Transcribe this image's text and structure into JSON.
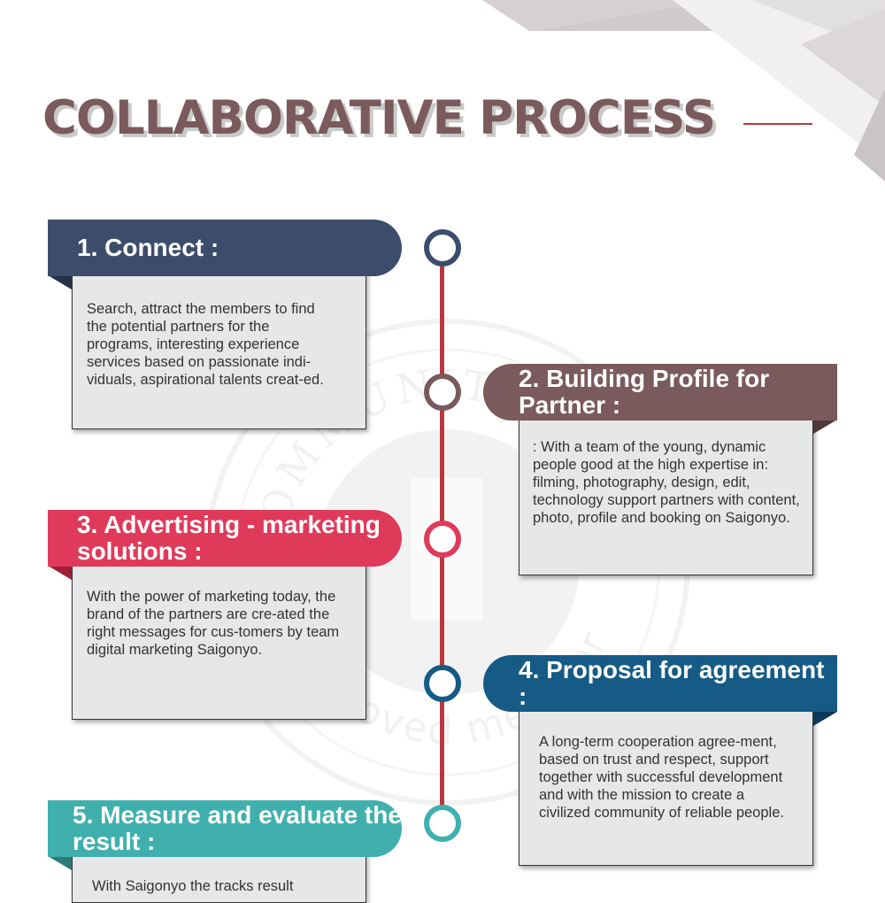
{
  "page": {
    "title": "COLLABORATIVE PROCESS"
  },
  "colors": {
    "navy": "#3c4d6b",
    "mauve": "#7a5a5c",
    "crimson": "#e03a5a",
    "blue": "#165a86",
    "teal": "#3fb0ad",
    "timeline": "#b7393f",
    "card_bg": "#e6e7e9"
  },
  "steps": [
    {
      "heading": "1. Connect :",
      "body": "Search, attract the members to find the potential partners for the programs, interesting experience services based on passionate indi-viduals, aspirational talents creat-ed."
    },
    {
      "heading": "2. Building Profile for Partner :",
      "body": ": With a team of the young, dynamic people good at the high expertise in: filming, photography, design, edit, technology support partners with content, photo, profile and booking on Saigonyo."
    },
    {
      "heading": "3. Advertising - marketing solutions :",
      "body": "With the power of marketing today, the brand of the partners are cre-ated the right messages for cus-tomers by team digital marketing Saigonyo."
    },
    {
      "heading": "4. Proposal for agreement :",
      "body": "A long-term cooperation agree-ment, based on trust and respect, support together with successful development and with the mission to create a civilized community of reliable people."
    },
    {
      "heading": "5.  Measure and evaluate the result :",
      "body": "With Saigonyo the tracks result"
    }
  ],
  "watermark": {
    "ring_text_top": "COMMUNITY",
    "ring_text_bottom": "Approved member"
  }
}
